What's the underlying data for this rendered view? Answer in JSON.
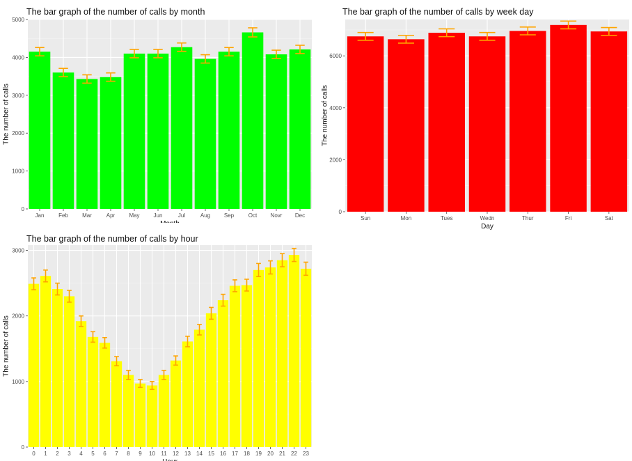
{
  "chart_data": [
    {
      "type": "bar",
      "title": "The bar graph of the number of calls by month",
      "xlabel": "Month",
      "ylabel": "The number of calls",
      "categories": [
        "Jan",
        "Feb",
        "Mar",
        "Apr",
        "May",
        "Jun",
        "Jul",
        "Aug",
        "Sep",
        "Oct",
        "Novr",
        "Dec"
      ],
      "values": [
        4150,
        3600,
        3430,
        3480,
        4100,
        4100,
        4270,
        3960,
        4150,
        4660,
        4080,
        4210
      ],
      "error": [
        110,
        110,
        110,
        110,
        110,
        110,
        110,
        110,
        110,
        120,
        110,
        110
      ],
      "ylim": [
        0,
        5000
      ],
      "yticks": [
        0,
        1000,
        2000,
        3000,
        4000,
        5000
      ],
      "bar_color": "#00ff00",
      "error_color": "#ffa500",
      "grid": true
    },
    {
      "type": "bar",
      "title": "The bar graph of the number of calls by week day",
      "xlabel": "Day",
      "ylabel": "The number of calls",
      "categories": [
        "Sun",
        "Mon",
        "Tues",
        "Wedn",
        "Thur",
        "Fri",
        "Sat"
      ],
      "values": [
        6750,
        6640,
        6890,
        6750,
        6960,
        7190,
        6940
      ],
      "error": [
        150,
        150,
        150,
        150,
        150,
        150,
        150
      ],
      "ylim": [
        0,
        7400
      ],
      "yticks": [
        0,
        2000,
        4000,
        6000
      ],
      "bar_color": "#ff0000",
      "error_color": "#ffa500",
      "grid": true
    },
    {
      "type": "bar",
      "title": "The bar graph of the number of calls by hour",
      "xlabel": "Hour",
      "ylabel": "The number of calls",
      "categories": [
        "0",
        "1",
        "2",
        "3",
        "4",
        "5",
        "6",
        "7",
        "8",
        "9",
        "10",
        "11",
        "12",
        "13",
        "14",
        "15",
        "16",
        "17",
        "18",
        "19",
        "20",
        "21",
        "22",
        "23"
      ],
      "values": [
        2490,
        2610,
        2410,
        2300,
        1920,
        1680,
        1590,
        1310,
        1100,
        970,
        940,
        1100,
        1320,
        1610,
        1790,
        2040,
        2240,
        2460,
        2470,
        2700,
        2740,
        2850,
        2930,
        2720
      ],
      "error": [
        90,
        90,
        90,
        90,
        80,
        80,
        80,
        70,
        70,
        60,
        60,
        70,
        70,
        80,
        80,
        90,
        90,
        90,
        90,
        100,
        100,
        100,
        100,
        100
      ],
      "ylim": [
        0,
        3080
      ],
      "yticks": [
        0,
        1000,
        2000,
        3000
      ],
      "bar_color": "#ffff00",
      "error_color": "#ffa500",
      "grid": true
    }
  ]
}
